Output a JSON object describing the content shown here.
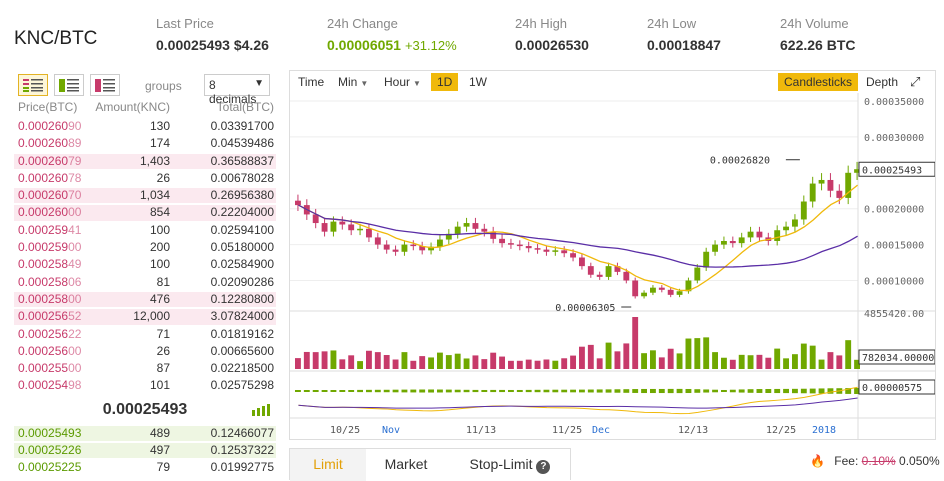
{
  "header": {
    "pair": "KNC/BTC",
    "last_price_label": "Last Price",
    "last_price": "0.00025493",
    "last_price_usd": "$4.26",
    "change_label": "24h Change",
    "change_value": "0.00006051",
    "change_pct": "+31.12%",
    "high_label": "24h High",
    "high_value": "0.00026530",
    "low_label": "24h Low",
    "low_value": "0.00018847",
    "volume_label": "24h Volume",
    "volume_value": "622.26 BTC"
  },
  "orderbook": {
    "groups_label": "groups",
    "decimals": "8 decimals",
    "headers": {
      "price": "Price(BTC)",
      "amount": "Amount(KNC)",
      "total": "Total(BTC)"
    },
    "asks": [
      {
        "price_main": "0.000260",
        "price_tail": "90",
        "amount": "130",
        "total": "0.03391700",
        "depth": 0.0
      },
      {
        "price_main": "0.000260",
        "price_tail": "89",
        "amount": "174",
        "total": "0.04539486",
        "depth": 0.0
      },
      {
        "price_main": "0.000260",
        "price_tail": "79",
        "amount": "1,403",
        "total": "0.36588837",
        "depth": 1.0
      },
      {
        "price_main": "0.000260",
        "price_tail": "78",
        "amount": "26",
        "total": "0.00678028",
        "depth": 0.0
      },
      {
        "price_main": "0.000260",
        "price_tail": "70",
        "amount": "1,034",
        "total": "0.26956380",
        "depth": 1.0
      },
      {
        "price_main": "0.000260",
        "price_tail": "00",
        "amount": "854",
        "total": "0.22204000",
        "depth": 1.0
      },
      {
        "price_main": "0.000259",
        "price_tail": "41",
        "amount": "100",
        "total": "0.02594100",
        "depth": 0.0
      },
      {
        "price_main": "0.000259",
        "price_tail": "00",
        "amount": "200",
        "total": "0.05180000",
        "depth": 0.0
      },
      {
        "price_main": "0.000258",
        "price_tail": "49",
        "amount": "100",
        "total": "0.02584900",
        "depth": 0.0
      },
      {
        "price_main": "0.000258",
        "price_tail": "06",
        "amount": "81",
        "total": "0.02090286",
        "depth": 0.0
      },
      {
        "price_main": "0.000258",
        "price_tail": "00",
        "amount": "476",
        "total": "0.12280800",
        "depth": 1.0
      },
      {
        "price_main": "0.000256",
        "price_tail": "52",
        "amount": "12,000",
        "total": "3.07824000",
        "depth": 1.0
      },
      {
        "price_main": "0.000256",
        "price_tail": "22",
        "amount": "71",
        "total": "0.01819162",
        "depth": 0.0
      },
      {
        "price_main": "0.000256",
        "price_tail": "00",
        "amount": "26",
        "total": "0.00665600",
        "depth": 0.0
      },
      {
        "price_main": "0.000255",
        "price_tail": "00",
        "amount": "87",
        "total": "0.02218500",
        "depth": 0.0
      },
      {
        "price_main": "0.000254",
        "price_tail": "98",
        "amount": "101",
        "total": "0.02575298",
        "depth": 0.0
      }
    ],
    "last_price": "0.00025493",
    "bids": [
      {
        "price": "0.00025493",
        "amount": "489",
        "total": "0.12466077",
        "depth": 1.0
      },
      {
        "price": "0.00025226",
        "amount": "497",
        "total": "0.12537322",
        "depth": 1.0
      },
      {
        "price": "0.00025225",
        "amount": "79",
        "total": "0.01992775",
        "depth": 0.0
      }
    ]
  },
  "chart": {
    "toolbar": {
      "time": "Time",
      "min": "Min",
      "hour": "Hour",
      "d1": "1D",
      "w1": "1W",
      "candlesticks": "Candlesticks",
      "depth": "Depth"
    },
    "price_ticks": [
      "0.00035000",
      "0.00030000",
      "0.00020000",
      "0.00015000",
      "0.00010000"
    ],
    "current_price_tag": "0.00025493",
    "high_marker": "0.00026820",
    "low_marker": "0.00006305",
    "volume_top_label": "4855420.00",
    "volume_tag": "782034.00000",
    "macd_tag": "0.00000575",
    "x_labels": [
      {
        "text": "10/25",
        "blue": false
      },
      {
        "text": "Nov",
        "blue": true
      },
      {
        "text": "11/13",
        "blue": false
      },
      {
        "text": "11/25",
        "blue": false
      },
      {
        "text": "Dec",
        "blue": true
      },
      {
        "text": "12/13",
        "blue": false
      },
      {
        "text": "12/25",
        "blue": false
      },
      {
        "text": "2018",
        "blue": true
      }
    ]
  },
  "chart_data": {
    "type": "candlestick",
    "price_axis_ticks": [
      0.00035,
      0.0003,
      0.0002,
      0.00015,
      0.0001
    ],
    "close_series": [
      0.000205,
      0.000192,
      0.00018,
      0.000168,
      0.000182,
      0.000178,
      0.00017,
      0.000172,
      0.00016,
      0.00015,
      0.000143,
      0.00014,
      0.00015,
      0.000148,
      0.000142,
      0.000147,
      0.000157,
      0.000165,
      0.000175,
      0.00018,
      0.000172,
      0.000168,
      0.000158,
      0.000152,
      0.00015,
      0.000148,
      0.000145,
      0.000143,
      0.00014,
      0.000142,
      0.000138,
      0.000132,
      0.00012,
      0.000108,
      0.000105,
      0.00012,
      0.000112,
      0.0001,
      7.8e-05,
      8.3e-05,
      9e-05,
      8.7e-05,
      8e-05,
      8.5e-05,
      0.0001,
      0.000118,
      0.00014,
      0.00015,
      0.000155,
      0.000152,
      0.00016,
      0.000168,
      0.00016,
      0.000155,
      0.00017,
      0.000175,
      0.000185,
      0.00021,
      0.000235,
      0.00024,
      0.000225,
      0.000215,
      0.00025,
      0.000255
    ],
    "high": 0.0002682,
    "low": 6.305e-05,
    "last": 0.00025493,
    "volume_axis_max": 4855420.0,
    "volume_last": 782034.0,
    "macd_last": 5.75e-06
  },
  "trade": {
    "tabs": [
      "Limit",
      "Market",
      "Stop-Limit"
    ],
    "fee_label": "Fee:",
    "fee_old": "0.10%",
    "fee_new": "0.050%"
  },
  "colors": {
    "up": "#70a800",
    "down": "#c73a6a",
    "accent": "#f0b90b",
    "ma_short": "#f0b90b",
    "ma_long": "#5a2ea6"
  }
}
